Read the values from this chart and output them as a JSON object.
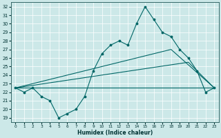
{
  "xlabel": "Humidex (Indice chaleur)",
  "xlim": [
    -0.5,
    23.5
  ],
  "ylim": [
    18.5,
    32.5
  ],
  "yticks": [
    19,
    20,
    21,
    22,
    23,
    24,
    25,
    26,
    27,
    28,
    29,
    30,
    31,
    32
  ],
  "xticks": [
    0,
    1,
    2,
    3,
    4,
    5,
    6,
    7,
    8,
    9,
    10,
    11,
    12,
    13,
    14,
    15,
    16,
    17,
    18,
    19,
    20,
    21,
    22,
    23
  ],
  "bg_color": "#cce8e8",
  "line_color": "#006666",
  "grid_color": "#ffffff",
  "lines": [
    {
      "x": [
        0,
        1,
        2,
        3,
        4,
        5,
        6,
        7,
        8,
        9,
        10,
        11,
        12,
        13,
        14,
        15,
        16,
        17,
        18,
        19,
        20,
        21,
        22,
        23
      ],
      "y": [
        22.5,
        22.0,
        22.5,
        21.5,
        21.0,
        19.0,
        19.5,
        20.0,
        21.5,
        24.5,
        26.5,
        27.5,
        28.0,
        27.5,
        30.0,
        32.0,
        30.5,
        29.0,
        28.5,
        27.0,
        26.0,
        24.5,
        22.0,
        22.5
      ],
      "marker": true
    },
    {
      "x": [
        0,
        18,
        23
      ],
      "y": [
        22.5,
        27.0,
        22.5
      ],
      "marker": false
    },
    {
      "x": [
        0,
        20,
        23
      ],
      "y": [
        22.5,
        25.5,
        22.5
      ],
      "marker": false
    },
    {
      "x": [
        0,
        23
      ],
      "y": [
        22.5,
        22.5
      ],
      "marker": false
    }
  ]
}
